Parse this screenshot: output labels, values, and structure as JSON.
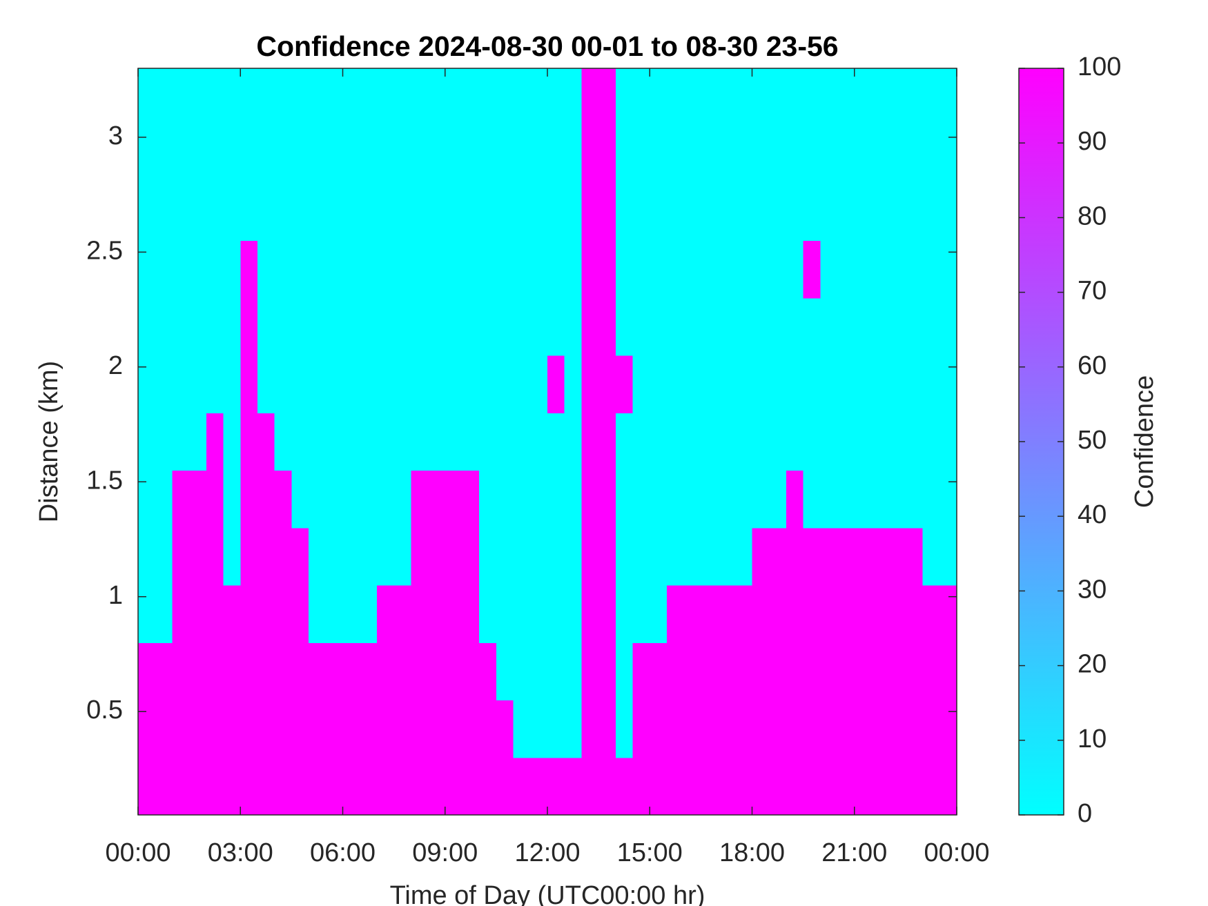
{
  "chart_data": {
    "type": "heatmap",
    "title": "Confidence 2024-08-30 00-01 to 08-30 23-56",
    "xlabel": "Time of Day (UTC00:00 hr)",
    "ylabel": "Distance (km)",
    "colorbar_label": "Confidence",
    "colormap": [
      "#00ffff",
      "#ff00ff"
    ],
    "x": [
      0,
      0.5,
      1,
      1.5,
      2,
      2.5,
      3,
      3.5,
      4,
      4.5,
      5,
      5.5,
      6,
      6.5,
      7,
      7.5,
      8,
      8.5,
      9,
      9.5,
      10,
      10.5,
      11,
      11.5,
      12,
      12.5,
      13,
      13.5,
      14,
      14.5,
      15,
      15.5,
      16,
      16.5,
      17,
      17.5,
      18,
      18.5,
      19,
      19.5,
      20,
      20.5,
      21,
      21.5,
      22,
      22.5,
      23,
      23.5,
      24
    ],
    "y": [
      0.05,
      0.3,
      0.55,
      0.8,
      1.05,
      1.3,
      1.55,
      1.8,
      2.05,
      2.3,
      2.55,
      2.8,
      3.05,
      3.3
    ],
    "z": [
      [
        100,
        100,
        100,
        100,
        100,
        100,
        100,
        100,
        100,
        100,
        100,
        100,
        100,
        100,
        100,
        100,
        100,
        100,
        100,
        100,
        100,
        100,
        100,
        100,
        100,
        100,
        100,
        100,
        100,
        100,
        100,
        100,
        100,
        100,
        100,
        100,
        100,
        100,
        100,
        100,
        100,
        100,
        100,
        100,
        100,
        100,
        100,
        100
      ],
      [
        100,
        100,
        100,
        100,
        100,
        100,
        100,
        100,
        100,
        100,
        100,
        100,
        100,
        100,
        100,
        100,
        100,
        100,
        100,
        100,
        100,
        100,
        0,
        0,
        0,
        0,
        100,
        100,
        0,
        100,
        100,
        100,
        100,
        100,
        100,
        100,
        100,
        100,
        100,
        100,
        100,
        100,
        100,
        100,
        100,
        100,
        100,
        100
      ],
      [
        100,
        100,
        100,
        100,
        100,
        100,
        100,
        100,
        100,
        100,
        100,
        100,
        100,
        100,
        100,
        100,
        100,
        100,
        100,
        100,
        100,
        0,
        0,
        0,
        0,
        0,
        100,
        100,
        0,
        100,
        100,
        100,
        100,
        100,
        100,
        100,
        100,
        100,
        100,
        100,
        100,
        100,
        100,
        100,
        100,
        100,
        100,
        100
      ],
      [
        0,
        0,
        100,
        100,
        100,
        100,
        100,
        100,
        100,
        100,
        0,
        0,
        0,
        0,
        100,
        100,
        100,
        100,
        100,
        100,
        0,
        0,
        0,
        0,
        0,
        0,
        100,
        100,
        0,
        0,
        0,
        100,
        100,
        100,
        100,
        100,
        100,
        100,
        100,
        100,
        100,
        100,
        100,
        100,
        100,
        100,
        100,
        100
      ],
      [
        0,
        0,
        100,
        100,
        100,
        0,
        100,
        100,
        100,
        100,
        0,
        0,
        0,
        0,
        0,
        0,
        100,
        100,
        100,
        100,
        0,
        0,
        0,
        0,
        0,
        0,
        100,
        100,
        0,
        0,
        0,
        0,
        0,
        0,
        0,
        0,
        100,
        100,
        100,
        100,
        100,
        100,
        100,
        100,
        100,
        100,
        0,
        0
      ],
      [
        0,
        0,
        100,
        100,
        100,
        0,
        100,
        100,
        100,
        0,
        0,
        0,
        0,
        0,
        0,
        0,
        100,
        100,
        100,
        100,
        0,
        0,
        0,
        0,
        0,
        0,
        100,
        100,
        0,
        0,
        0,
        0,
        0,
        0,
        0,
        0,
        0,
        0,
        100,
        0,
        0,
        0,
        0,
        0,
        0,
        0,
        0,
        0
      ],
      [
        0,
        0,
        0,
        0,
        100,
        0,
        100,
        100,
        0,
        0,
        0,
        0,
        0,
        0,
        0,
        0,
        0,
        0,
        0,
        0,
        0,
        0,
        0,
        0,
        0,
        0,
        100,
        100,
        0,
        0,
        0,
        0,
        0,
        0,
        0,
        0,
        0,
        0,
        0,
        0,
        0,
        0,
        0,
        0,
        0,
        0,
        0,
        0
      ],
      [
        0,
        0,
        0,
        0,
        0,
        0,
        100,
        0,
        0,
        0,
        0,
        0,
        0,
        0,
        0,
        0,
        0,
        0,
        0,
        0,
        0,
        0,
        0,
        0,
        100,
        0,
        100,
        100,
        100,
        0,
        0,
        0,
        0,
        0,
        0,
        0,
        0,
        0,
        0,
        0,
        0,
        0,
        0,
        0,
        0,
        0,
        0,
        0
      ],
      [
        0,
        0,
        0,
        0,
        0,
        0,
        100,
        0,
        0,
        0,
        0,
        0,
        0,
        0,
        0,
        0,
        0,
        0,
        0,
        0,
        0,
        0,
        0,
        0,
        0,
        0,
        100,
        100,
        0,
        0,
        0,
        0,
        0,
        0,
        0,
        0,
        0,
        0,
        0,
        0,
        0,
        0,
        0,
        0,
        0,
        0,
        0,
        0
      ],
      [
        0,
        0,
        0,
        0,
        0,
        0,
        100,
        0,
        0,
        0,
        0,
        0,
        0,
        0,
        0,
        0,
        0,
        0,
        0,
        0,
        0,
        0,
        0,
        0,
        0,
        0,
        100,
        100,
        0,
        0,
        0,
        0,
        0,
        0,
        0,
        0,
        0,
        0,
        0,
        100,
        0,
        0,
        0,
        0,
        0,
        0,
        0,
        0
      ],
      [
        0,
        0,
        0,
        0,
        0,
        0,
        0,
        0,
        0,
        0,
        0,
        0,
        0,
        0,
        0,
        0,
        0,
        0,
        0,
        0,
        0,
        0,
        0,
        0,
        0,
        0,
        100,
        100,
        0,
        0,
        0,
        0,
        0,
        0,
        0,
        0,
        0,
        0,
        0,
        0,
        0,
        0,
        0,
        0,
        0,
        0,
        0,
        0
      ],
      [
        0,
        0,
        0,
        0,
        0,
        0,
        0,
        0,
        0,
        0,
        0,
        0,
        0,
        0,
        0,
        0,
        0,
        0,
        0,
        0,
        0,
        0,
        0,
        0,
        0,
        0,
        100,
        100,
        0,
        0,
        0,
        0,
        0,
        0,
        0,
        0,
        0,
        0,
        0,
        0,
        0,
        0,
        0,
        0,
        0,
        0,
        0,
        0
      ],
      [
        0,
        0,
        0,
        0,
        0,
        0,
        0,
        0,
        0,
        0,
        0,
        0,
        0,
        0,
        0,
        0,
        0,
        0,
        0,
        0,
        0,
        0,
        0,
        0,
        0,
        0,
        100,
        100,
        0,
        0,
        0,
        0,
        0,
        0,
        0,
        0,
        0,
        0,
        0,
        0,
        0,
        0,
        0,
        0,
        0,
        0,
        0,
        0
      ]
    ],
    "xlim": [
      0,
      24
    ],
    "xticks": [
      {
        "value": 0,
        "label": "00:00"
      },
      {
        "value": 3,
        "label": "03:00"
      },
      {
        "value": 6,
        "label": "06:00"
      },
      {
        "value": 9,
        "label": "09:00"
      },
      {
        "value": 12,
        "label": "12:00"
      },
      {
        "value": 15,
        "label": "15:00"
      },
      {
        "value": 18,
        "label": "18:00"
      },
      {
        "value": 21,
        "label": "21:00"
      },
      {
        "value": 24,
        "label": "00:00"
      }
    ],
    "ylim": [
      0.05,
      3.3
    ],
    "yticks": [
      0.5,
      1,
      1.5,
      2,
      2.5,
      3
    ],
    "zlim": [
      0,
      100
    ],
    "zticks": [
      0,
      10,
      20,
      30,
      40,
      50,
      60,
      70,
      80,
      90,
      100
    ]
  }
}
